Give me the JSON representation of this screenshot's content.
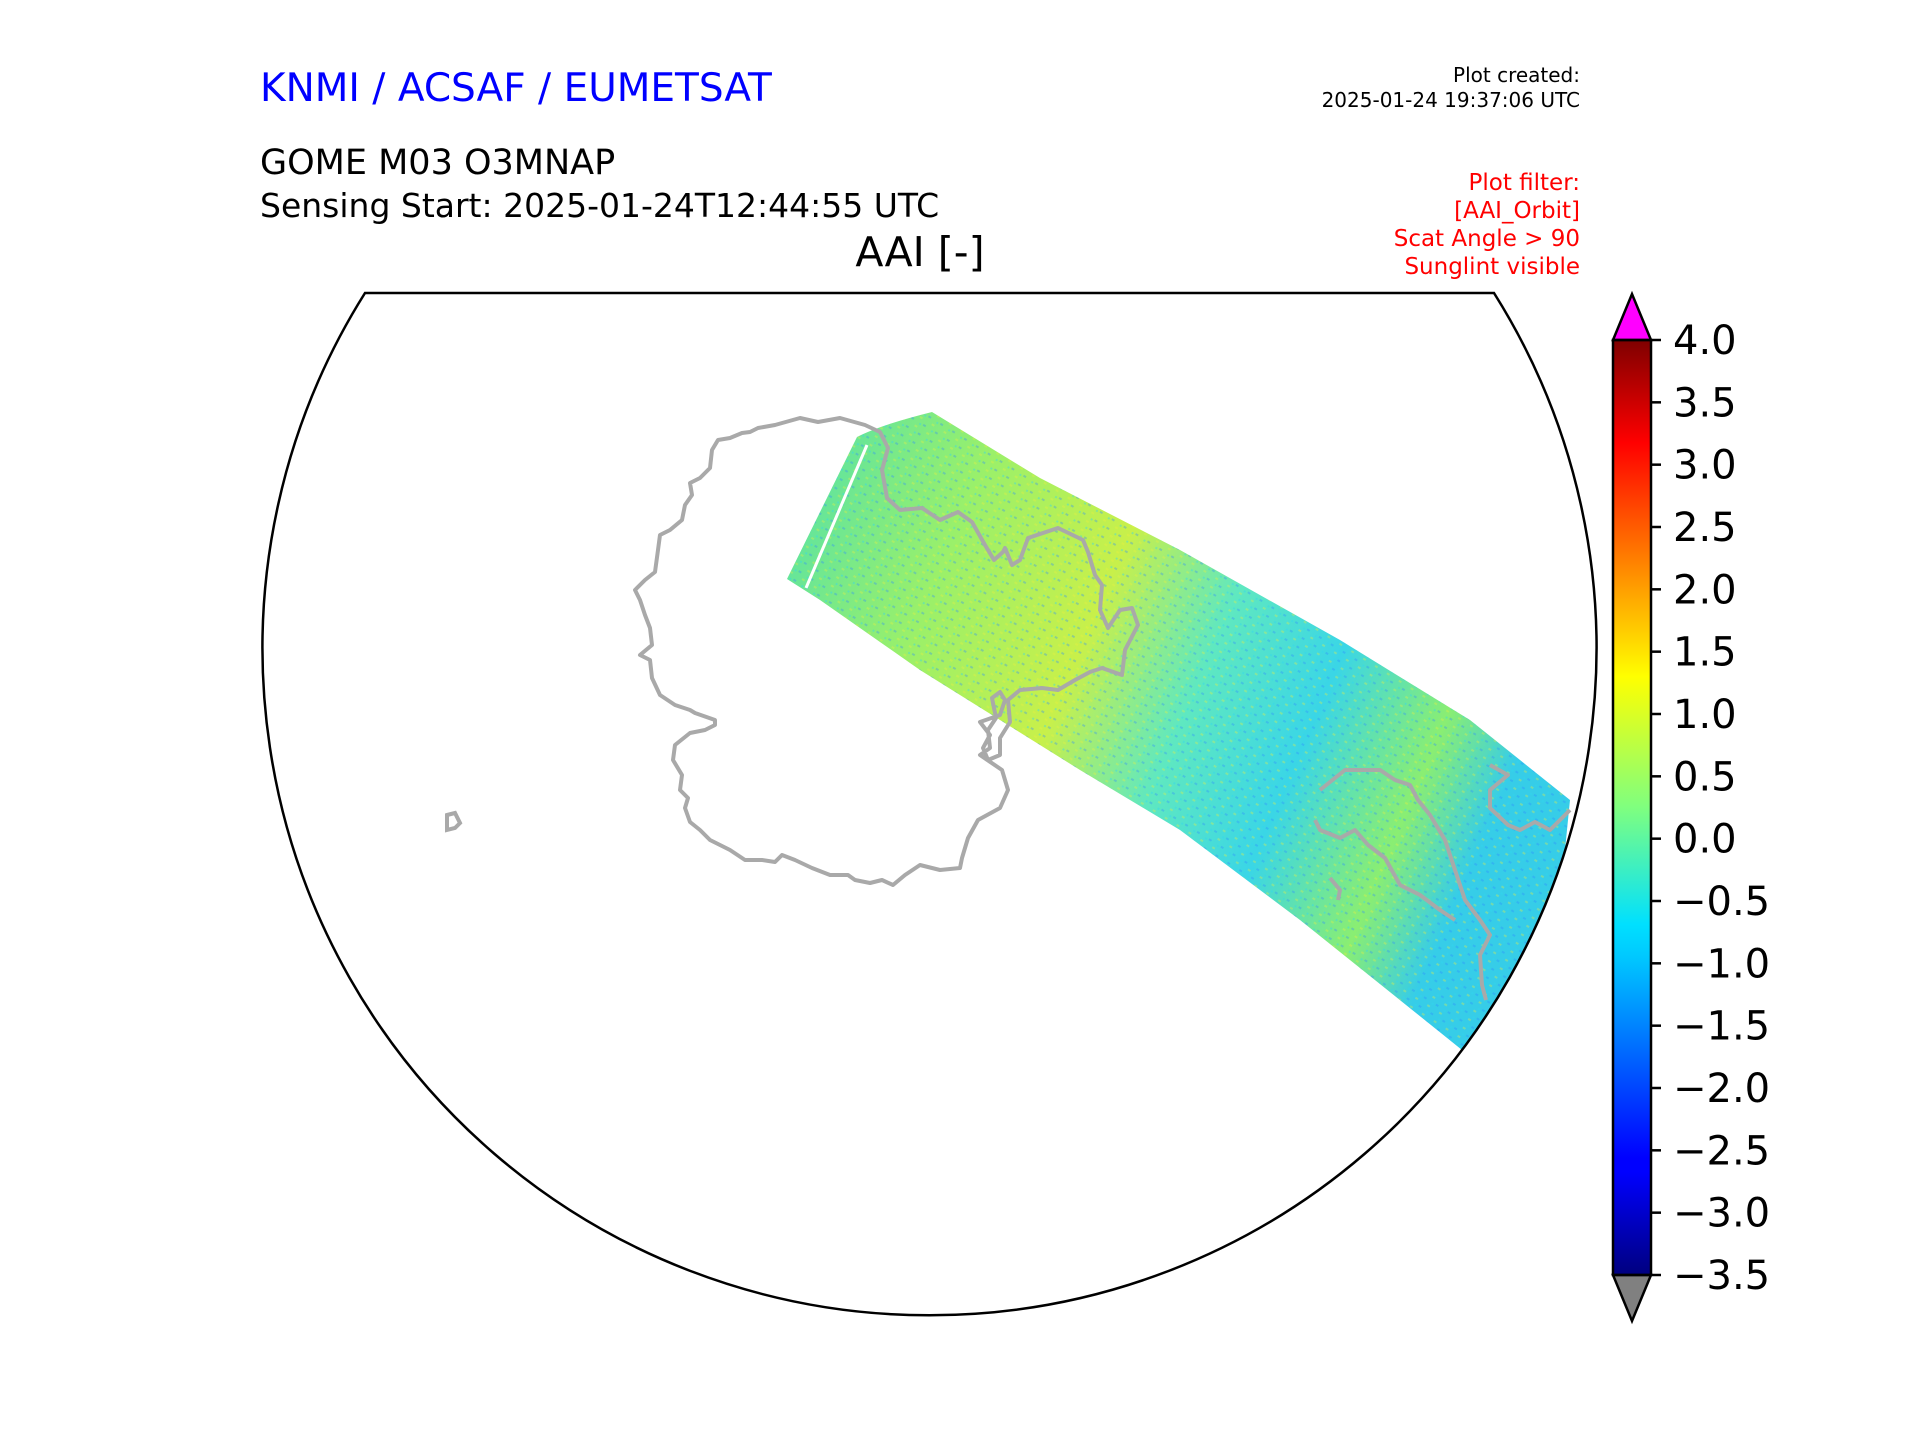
{
  "header": {
    "org_title": "KNMI / ACSAF / EUMETSAT",
    "plot_created_label": "Plot created:",
    "plot_created_value": "2025-01-24 19:37:06 UTC",
    "product": "GOME M03 O3MNAP",
    "sensing_start": "Sensing Start: 2025-01-24T12:44:55 UTC",
    "variable_title": "AAI [-]"
  },
  "filters": {
    "lines": [
      "Plot filter:",
      "[AAI_Orbit]",
      "Scat Angle > 90",
      "Sunglint visible"
    ]
  },
  "colorbar": {
    "ticks": [
      "4.0",
      "3.5",
      "3.0",
      "2.5",
      "2.0",
      "1.5",
      "1.0",
      "0.5",
      "0.0",
      "−0.5",
      "−1.0",
      "−1.5",
      "−2.0",
      "−2.5",
      "−3.0",
      "−3.5"
    ],
    "min": -3.5,
    "max": 4.0,
    "over_color": "#ff00ff",
    "under_color": "#808080",
    "colormap": "jet"
  },
  "map": {
    "projection": "south polar stereographic",
    "coastline_color": "#a9a9a9",
    "boundary_color": "#000000"
  },
  "colors": {
    "title_blue": "#0000ff",
    "filter_red": "#ff0000"
  }
}
